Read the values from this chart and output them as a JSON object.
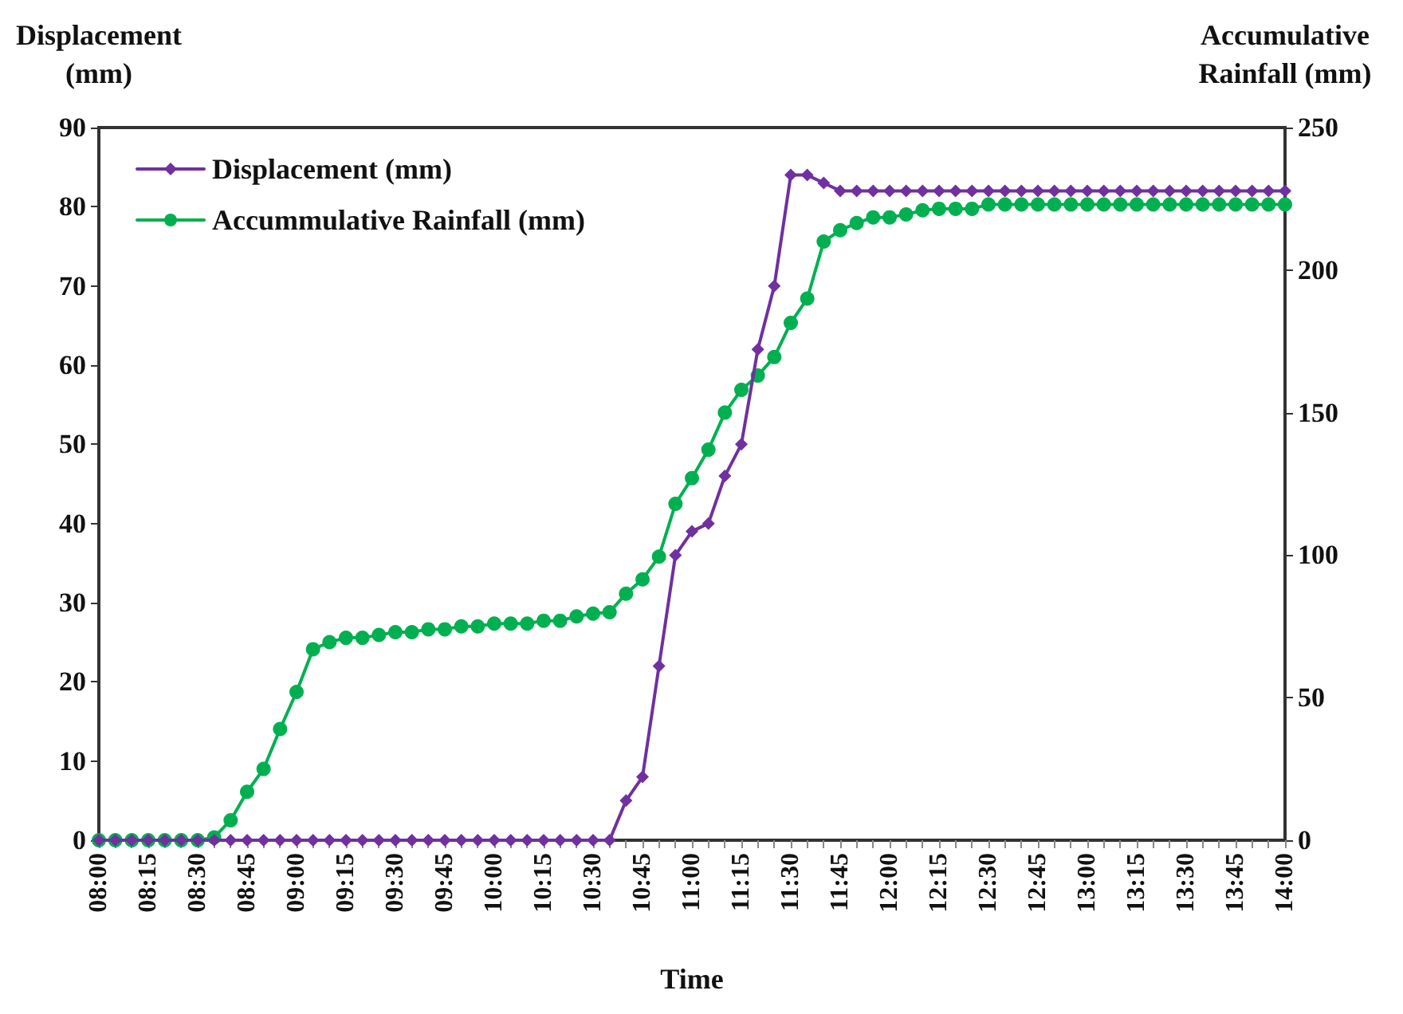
{
  "chart_data": {
    "type": "line",
    "xlabel": "Time",
    "ylabel": "Displacement\n(mm)",
    "y2label": "Accumulative\nRainfall (mm)",
    "categories": [
      "08:00",
      null,
      null,
      "08:15",
      null,
      null,
      "08:30",
      null,
      null,
      "08:45",
      null,
      null,
      "09:00",
      null,
      null,
      "09:15",
      null,
      null,
      "09:30",
      null,
      null,
      "09:45",
      null,
      null,
      "10:00",
      null,
      null,
      "10:15",
      null,
      null,
      "10:30",
      null,
      null,
      "10:45",
      null,
      null,
      "11:00",
      null,
      null,
      "11:15",
      null,
      null,
      "11:30",
      null,
      null,
      "11:45",
      null,
      null,
      "12:00",
      null,
      null,
      "12:15",
      null,
      null,
      "12:30",
      null,
      null,
      "12:45",
      null,
      null,
      "13:00",
      null,
      null,
      "13:15",
      null,
      null,
      "13:30",
      null,
      null,
      "13:45",
      null,
      null,
      "14:00"
    ],
    "series": [
      {
        "name": "Displacement (mm)",
        "color": "#7030a0",
        "marker": "diamond",
        "values": [
          0,
          0,
          0,
          0,
          0,
          0,
          0,
          0,
          0,
          0,
          0,
          0,
          0,
          0,
          0,
          0,
          0,
          0,
          0,
          0,
          0,
          0,
          0,
          0,
          0,
          0,
          0,
          0,
          0,
          0,
          0,
          0,
          5,
          8,
          22,
          36,
          39,
          40,
          46,
          50,
          62,
          70,
          84,
          84,
          83,
          82,
          82,
          82,
          82,
          82,
          82,
          82,
          82,
          82,
          82,
          82,
          82,
          82,
          82,
          82,
          82,
          82,
          82,
          82,
          82,
          82,
          82,
          82,
          82,
          82,
          82,
          82,
          82
        ]
      },
      {
        "name": "Accummulative Rainfall (mm)",
        "color": "#00b050",
        "marker": "circle",
        "axis": "y2",
        "values": [
          0,
          0,
          0,
          0,
          0,
          0,
          0,
          1,
          7,
          17,
          25,
          39,
          52,
          67,
          69.5,
          71,
          71,
          72,
          73,
          73,
          74,
          74,
          75,
          75,
          76,
          76,
          76,
          77,
          77,
          78.5,
          79.5,
          80,
          86.5,
          91.5,
          99.5,
          118,
          127,
          137,
          150,
          158,
          163,
          169.5,
          181.5,
          190,
          210,
          214,
          216.5,
          218.5,
          218.5,
          219.5,
          221,
          221.5,
          221.5,
          221.5,
          223,
          223,
          223,
          223,
          223,
          223,
          223,
          223,
          223,
          223,
          223,
          223,
          223,
          223,
          223,
          223,
          223,
          223,
          223
        ]
      }
    ],
    "ylim": [
      0,
      90
    ],
    "yticks": [
      0,
      10,
      20,
      30,
      40,
      50,
      60,
      70,
      80,
      90
    ],
    "y2lim": [
      0,
      250
    ],
    "y2ticks": [
      0,
      50,
      100,
      150,
      200,
      250
    ],
    "legend": "top left",
    "grid": false,
    "line_style": "solid"
  }
}
